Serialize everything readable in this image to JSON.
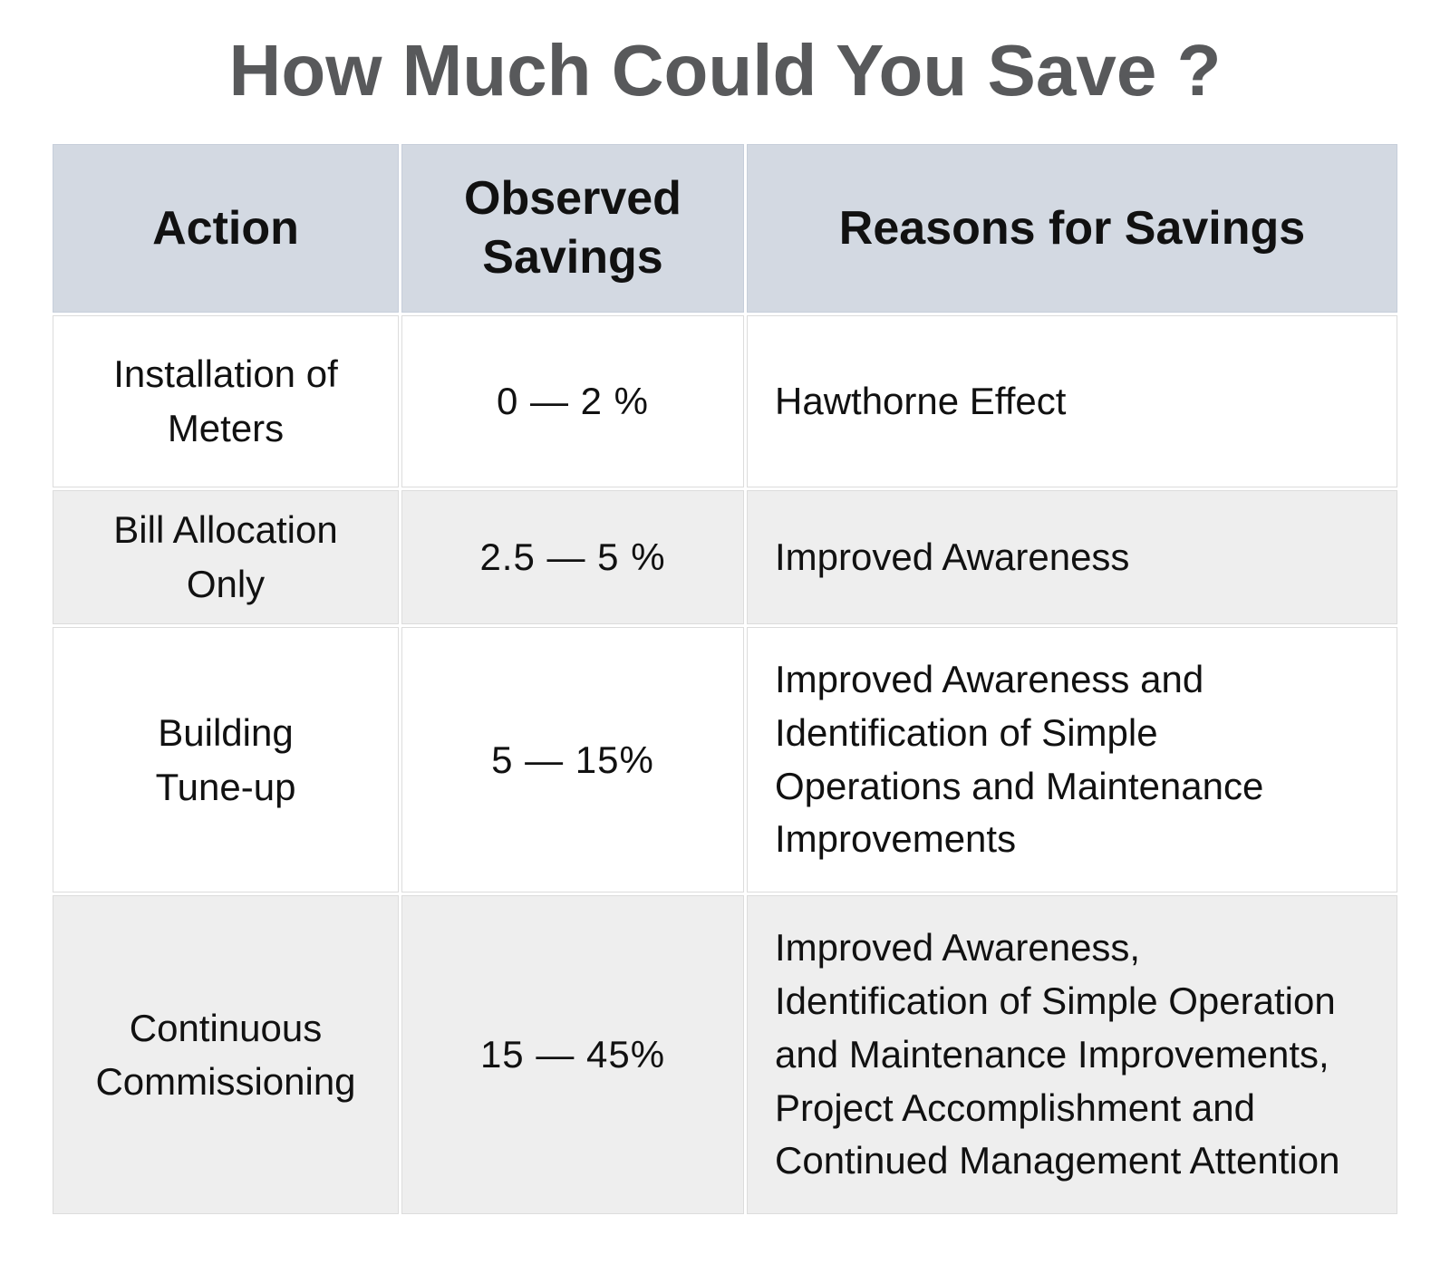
{
  "title": "How Much Could You Save ?",
  "table": {
    "columns": [
      {
        "label": "Action"
      },
      {
        "label": "Observed\nSavings"
      },
      {
        "label": "Reasons for Savings"
      }
    ],
    "rows": [
      {
        "action": "Installation of\nMeters",
        "savings": "0 — 2 %",
        "reasons": "Hawthorne Effect"
      },
      {
        "action": "Bill Allocation\nOnly",
        "savings": "2.5 — 5 %",
        "reasons": "Improved Awareness"
      },
      {
        "action": "Building\nTune-up",
        "savings": "5 — 15%",
        "reasons": "Improved Awareness and\nIdentification of Simple\nOperations and Maintenance\nImprovements"
      },
      {
        "action": "Continuous\nCommissioning",
        "savings": "15 — 45%",
        "reasons": "Improved Awareness,\nIdentification of Simple Operation\nand Maintenance Improvements,\nProject Accomplishment and\nContinued Management Attention"
      }
    ]
  },
  "colors": {
    "header_bg": "#d3d9e2",
    "alt_row_bg": "#eeeeee",
    "title_color": "#58595b",
    "cell_border": "#dcdcdc",
    "body_text": "#111111"
  }
}
